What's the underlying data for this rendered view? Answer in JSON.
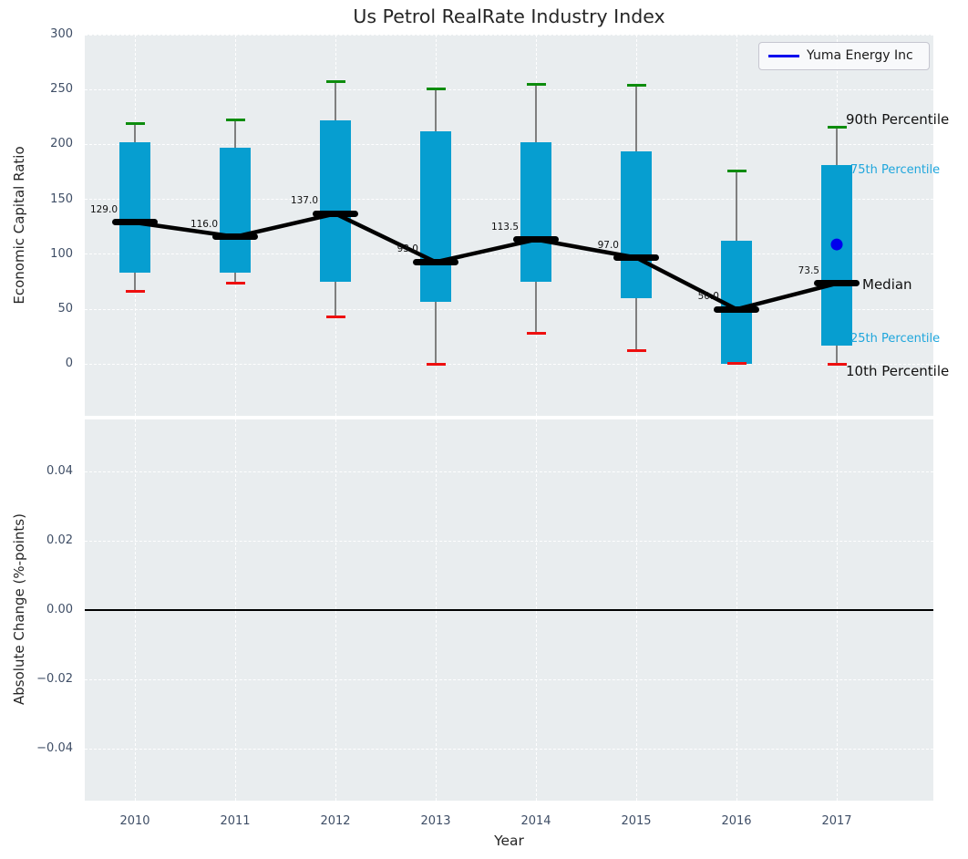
{
  "title": "Us Petrol RealRate Industry Index",
  "legend": {
    "label": "Yuma Energy Inc",
    "line_color": "#0000ee"
  },
  "axes": {
    "top": {
      "ylabel": "Economic Capital Ratio",
      "ytick_labels": [
        "300",
        "250",
        "200",
        "150",
        "100",
        "50",
        "0"
      ],
      "ytick_values": [
        300,
        250,
        200,
        150,
        100,
        50,
        0
      ],
      "ylim": [
        -47,
        300
      ]
    },
    "bottom": {
      "ylabel": "Absolute Change (%-points)",
      "ytick_labels": [
        "0.04",
        "0.02",
        "0.00",
        "−0.02",
        "−0.04"
      ],
      "ytick_values": [
        0.04,
        0.02,
        0,
        -0.02,
        -0.04
      ],
      "ylim": [
        -0.055,
        0.055
      ],
      "zero_line_value": 0
    },
    "xlabel": "Year"
  },
  "annotations": {
    "p90": "90th Percentile",
    "p75": "75th Percentile",
    "median": "Median",
    "p25": "25th Percentile",
    "p10": "10th Percentile"
  },
  "chart_data": {
    "type": "boxplot-timeseries",
    "title": "Us Petrol RealRate Industry Index",
    "xlabel": "Year",
    "ylabel_top": "Economic Capital Ratio",
    "ylabel_bottom": "Absolute Change (%-points)",
    "categories": [
      "2010",
      "2011",
      "2012",
      "2013",
      "2014",
      "2015",
      "2016",
      "2017"
    ],
    "boxes": [
      {
        "year": "2010",
        "p10": 66,
        "p25": 83,
        "median": 129,
        "p75": 202,
        "p90": 219,
        "median_label": "129.0"
      },
      {
        "year": "2011",
        "p10": 74,
        "p25": 83,
        "median": 116,
        "p75": 197,
        "p90": 222,
        "median_label": "116.0"
      },
      {
        "year": "2012",
        "p10": 43,
        "p25": 75,
        "median": 137,
        "p75": 222,
        "p90": 257,
        "median_label": "137.0"
      },
      {
        "year": "2013",
        "p10": 0,
        "p25": 57,
        "median": 93,
        "p75": 212,
        "p90": 251,
        "median_label": "93.0"
      },
      {
        "year": "2014",
        "p10": 28,
        "p25": 75,
        "median": 113.5,
        "p75": 202,
        "p90": 255,
        "median_label": "113.5"
      },
      {
        "year": "2015",
        "p10": 12,
        "p25": 60,
        "median": 97,
        "p75": 194,
        "p90": 254,
        "median_label": "97.0"
      },
      {
        "year": "2016",
        "p10": 1,
        "p25": 0,
        "median": 50,
        "p75": 112,
        "p90": 176,
        "median_label": "50.0"
      },
      {
        "year": "2017",
        "p10": 0,
        "p25": 17,
        "median": 73.5,
        "p75": 181,
        "p90": 216,
        "median_label": "73.5"
      }
    ],
    "company_series": {
      "name": "Yuma Energy Inc",
      "points": [
        {
          "year": "2017",
          "value": 109
        }
      ]
    },
    "bottom_panel": {
      "series": [],
      "zero_line": 0
    },
    "colors": {
      "box_fill": "#069ed0",
      "p90_cap": "#0d8c0d",
      "p10_cap": "#ee0f0f",
      "median": "#000000",
      "company": "#0000ee",
      "axes_background": "#e9edef",
      "grid": "#ffffff",
      "tick_text": "#3f4e66",
      "percentile_text_cyan": "#1fa6dc"
    }
  }
}
